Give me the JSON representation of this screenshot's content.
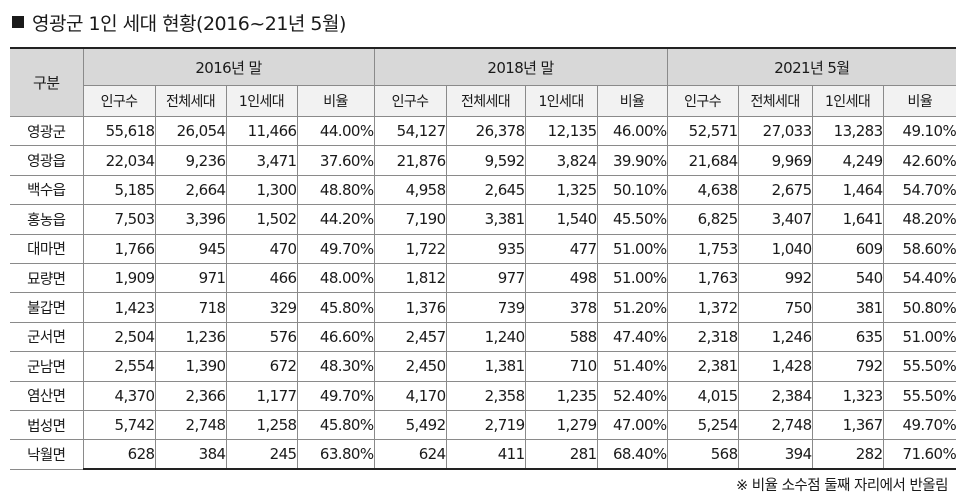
{
  "title": "영광군 1인 세대 현황(2016~21년 5월)",
  "corner_label": "구분",
  "groups": [
    "2016년 말",
    "2018년 말",
    "2021년 5월"
  ],
  "subheaders": [
    "인구수",
    "전체세대",
    "1인세대",
    "비율"
  ],
  "rows": [
    {
      "name": "영광군",
      "values": [
        "55,618",
        "26,054",
        "11,466",
        "44.00%",
        "54,127",
        "26,378",
        "12,135",
        "46.00%",
        "52,571",
        "27,033",
        "13,283",
        "49.10%"
      ]
    },
    {
      "name": "영광읍",
      "values": [
        "22,034",
        "9,236",
        "3,471",
        "37.60%",
        "21,876",
        "9,592",
        "3,824",
        "39.90%",
        "21,684",
        "9,969",
        "4,249",
        "42.60%"
      ]
    },
    {
      "name": "백수읍",
      "values": [
        "5,185",
        "2,664",
        "1,300",
        "48.80%",
        "4,958",
        "2,645",
        "1,325",
        "50.10%",
        "4,638",
        "2,675",
        "1,464",
        "54.70%"
      ]
    },
    {
      "name": "홍농읍",
      "values": [
        "7,503",
        "3,396",
        "1,502",
        "44.20%",
        "7,190",
        "3,381",
        "1,540",
        "45.50%",
        "6,825",
        "3,407",
        "1,641",
        "48.20%"
      ]
    },
    {
      "name": "대마면",
      "values": [
        "1,766",
        "945",
        "470",
        "49.70%",
        "1,722",
        "935",
        "477",
        "51.00%",
        "1,753",
        "1,040",
        "609",
        "58.60%"
      ]
    },
    {
      "name": "묘량면",
      "values": [
        "1,909",
        "971",
        "466",
        "48.00%",
        "1,812",
        "977",
        "498",
        "51.00%",
        "1,763",
        "992",
        "540",
        "54.40%"
      ]
    },
    {
      "name": "불갑면",
      "values": [
        "1,423",
        "718",
        "329",
        "45.80%",
        "1,376",
        "739",
        "378",
        "51.20%",
        "1,372",
        "750",
        "381",
        "50.80%"
      ]
    },
    {
      "name": "군서면",
      "values": [
        "2,504",
        "1,236",
        "576",
        "46.60%",
        "2,457",
        "1,240",
        "588",
        "47.40%",
        "2,318",
        "1,246",
        "635",
        "51.00%"
      ]
    },
    {
      "name": "군남면",
      "values": [
        "2,554",
        "1,390",
        "672",
        "48.30%",
        "2,450",
        "1,381",
        "710",
        "51.40%",
        "2,381",
        "1,428",
        "792",
        "55.50%"
      ]
    },
    {
      "name": "염산면",
      "values": [
        "4,370",
        "2,366",
        "1,177",
        "49.70%",
        "4,170",
        "2,358",
        "1,235",
        "52.40%",
        "4,015",
        "2,384",
        "1,323",
        "55.50%"
      ]
    },
    {
      "name": "법성면",
      "values": [
        "5,742",
        "2,748",
        "1,258",
        "45.80%",
        "5,492",
        "2,719",
        "1,279",
        "47.00%",
        "5,254",
        "2,748",
        "1,367",
        "49.70%"
      ]
    },
    {
      "name": "낙월면",
      "values": [
        "628",
        "384",
        "245",
        "63.80%",
        "624",
        "411",
        "281",
        "68.40%",
        "568",
        "394",
        "282",
        "71.60%"
      ]
    }
  ],
  "footnote": "※ 비율 소수점 둘째 자리에서 반올림",
  "colors": {
    "group_header_bg": "#d8d8d8",
    "sub_header_bg": "#f2f2f2",
    "border": "#8a8a8a"
  }
}
